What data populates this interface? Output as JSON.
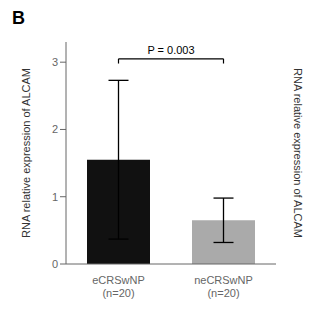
{
  "chart_data": {
    "type": "bar",
    "title": "B",
    "categories": [
      "eCRSwNP\n(n=20)",
      "neCRSwNP\n(n=20)"
    ],
    "values": [
      1.55,
      0.65
    ],
    "errors_up": [
      1.18,
      0.33
    ],
    "errors_down": [
      1.18,
      0.33
    ],
    "colors": [
      "#111111",
      "#aaaaaa"
    ],
    "ylabel": "RNA relative expression of ALCAM",
    "y2label": "RNA relative expression of ALCAM",
    "ylim": [
      0,
      3.3
    ],
    "yticks": [
      0,
      1,
      2,
      3
    ],
    "annotations": [
      {
        "text": "P = 0.003",
        "y": 3.05
      }
    ]
  }
}
